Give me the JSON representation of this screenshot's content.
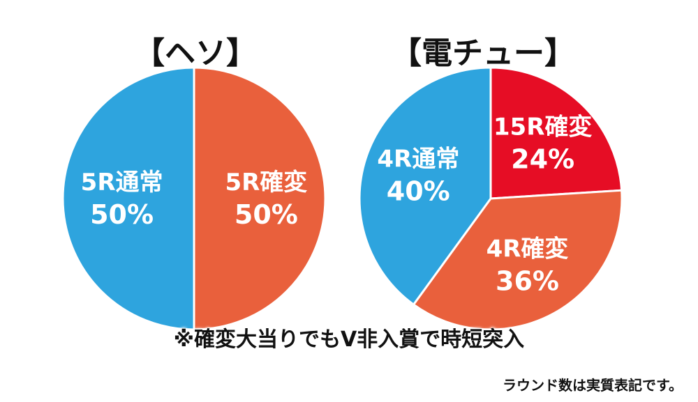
{
  "chart_data": [
    {
      "type": "pie",
      "title": "【ヘソ】",
      "slices": [
        {
          "label": "5R確変",
          "value": 50,
          "value_label": "50%",
          "color": "#E9603C"
        },
        {
          "label": "5R通常",
          "value": 50,
          "value_label": "50%",
          "color": "#2EA4DE"
        }
      ]
    },
    {
      "type": "pie",
      "title": "【電チュー】",
      "slices": [
        {
          "label": "15R確変",
          "value": 24,
          "value_label": "24%",
          "color": "#E60D25"
        },
        {
          "label": "4R確変",
          "value": 36,
          "value_label": "36%",
          "color": "#E9603C"
        },
        {
          "label": "4R通常",
          "value": 40,
          "value_label": "40%",
          "color": "#2EA4DE"
        }
      ]
    }
  ],
  "note": "※確変大当りでもV非入賞で時短突入",
  "footnote": "ラウンド数は実質表記です。"
}
